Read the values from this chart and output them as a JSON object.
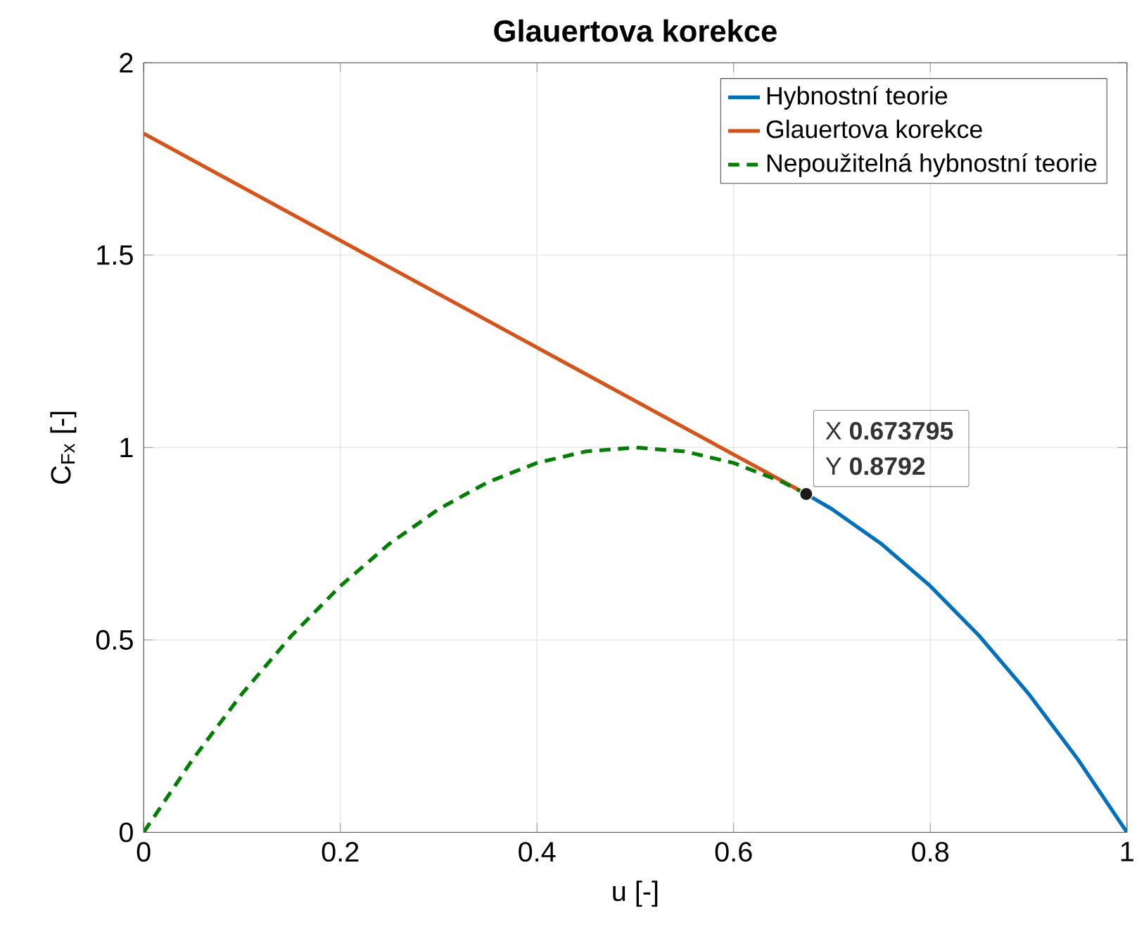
{
  "chart_data": {
    "type": "line",
    "title": "Glauertova korekce",
    "xlabel": "u [-]",
    "ylabel": "C$_{Fx}$ [-]",
    "xlim": [
      0,
      1
    ],
    "ylim": [
      0,
      2
    ],
    "xticks": [
      0,
      0.2,
      0.4,
      0.6,
      0.8,
      1
    ],
    "yticks": [
      0,
      0.5,
      1,
      1.5,
      2
    ],
    "grid": true,
    "legend": "top right",
    "series": [
      {
        "name": "Hybnostní teorie",
        "color": "#0072bd",
        "x": [
          0.6738,
          0.7,
          0.75,
          0.8,
          0.85,
          0.9,
          0.95,
          1
        ],
        "values": [
          0.8792,
          0.84,
          0.75,
          0.64,
          0.51,
          0.36,
          0.19,
          0
        ]
      },
      {
        "name": "Glauertova korekce",
        "color": "#d95319",
        "x": [
          0,
          0.3,
          0.6738
        ],
        "values": [
          1.816,
          1.399,
          0.8792
        ]
      },
      {
        "name": "Nepoužitelná hybnostní teorie",
        "color": "#008000",
        "line_style": "dashed",
        "x": [
          0,
          0.05,
          0.1,
          0.15,
          0.2,
          0.25,
          0.3,
          0.35,
          0.4,
          0.45,
          0.5,
          0.55,
          0.6,
          0.65,
          0.6738
        ],
        "values": [
          0,
          0.19,
          0.36,
          0.51,
          0.64,
          0.75,
          0.84,
          0.91,
          0.96,
          0.99,
          1,
          0.99,
          0.96,
          0.91,
          0.8792
        ]
      },
      {
        "type": "scatter",
        "color": "#1a1a1a",
        "marker": "circle",
        "x": [
          0.673795
        ],
        "values": [
          0.8792
        ]
      }
    ],
    "annotations": [
      {
        "text": "X **0.673795**",
        "x": 0.673795,
        "y": 0.8792
      },
      {
        "text": "Y **0.8792**",
        "x": 0.673795,
        "y": 0.8792
      }
    ]
  }
}
